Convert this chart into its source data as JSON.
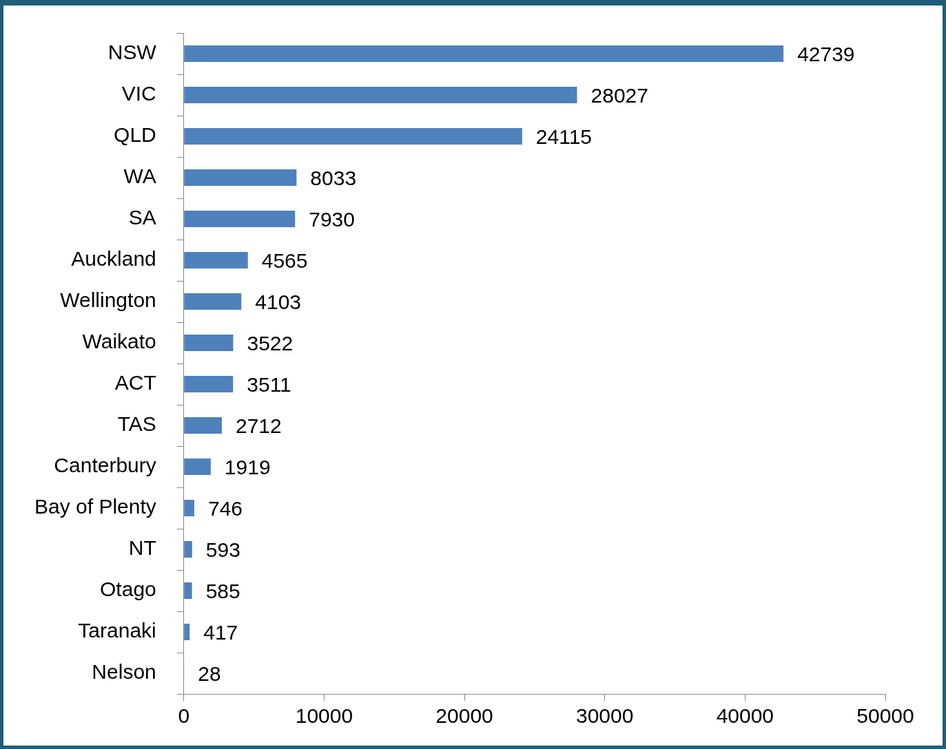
{
  "chart_data": {
    "type": "bar",
    "orientation": "horizontal",
    "categories": [
      "NSW",
      "VIC",
      "QLD",
      "WA",
      "SA",
      "Auckland",
      "Wellington",
      "Waikato",
      "ACT",
      "TAS",
      "Canterbury",
      "Bay of Plenty",
      "NT",
      "Otago",
      "Taranaki",
      "Nelson"
    ],
    "values": [
      42739,
      28027,
      24115,
      8033,
      7930,
      4565,
      4103,
      3522,
      3511,
      2712,
      1919,
      746,
      593,
      585,
      417,
      28
    ],
    "color": "#4f81bd",
    "xlim": [
      0,
      50000
    ],
    "xticks": [
      0,
      10000,
      20000,
      30000,
      40000,
      50000
    ],
    "data_labels": true,
    "legend": false
  }
}
